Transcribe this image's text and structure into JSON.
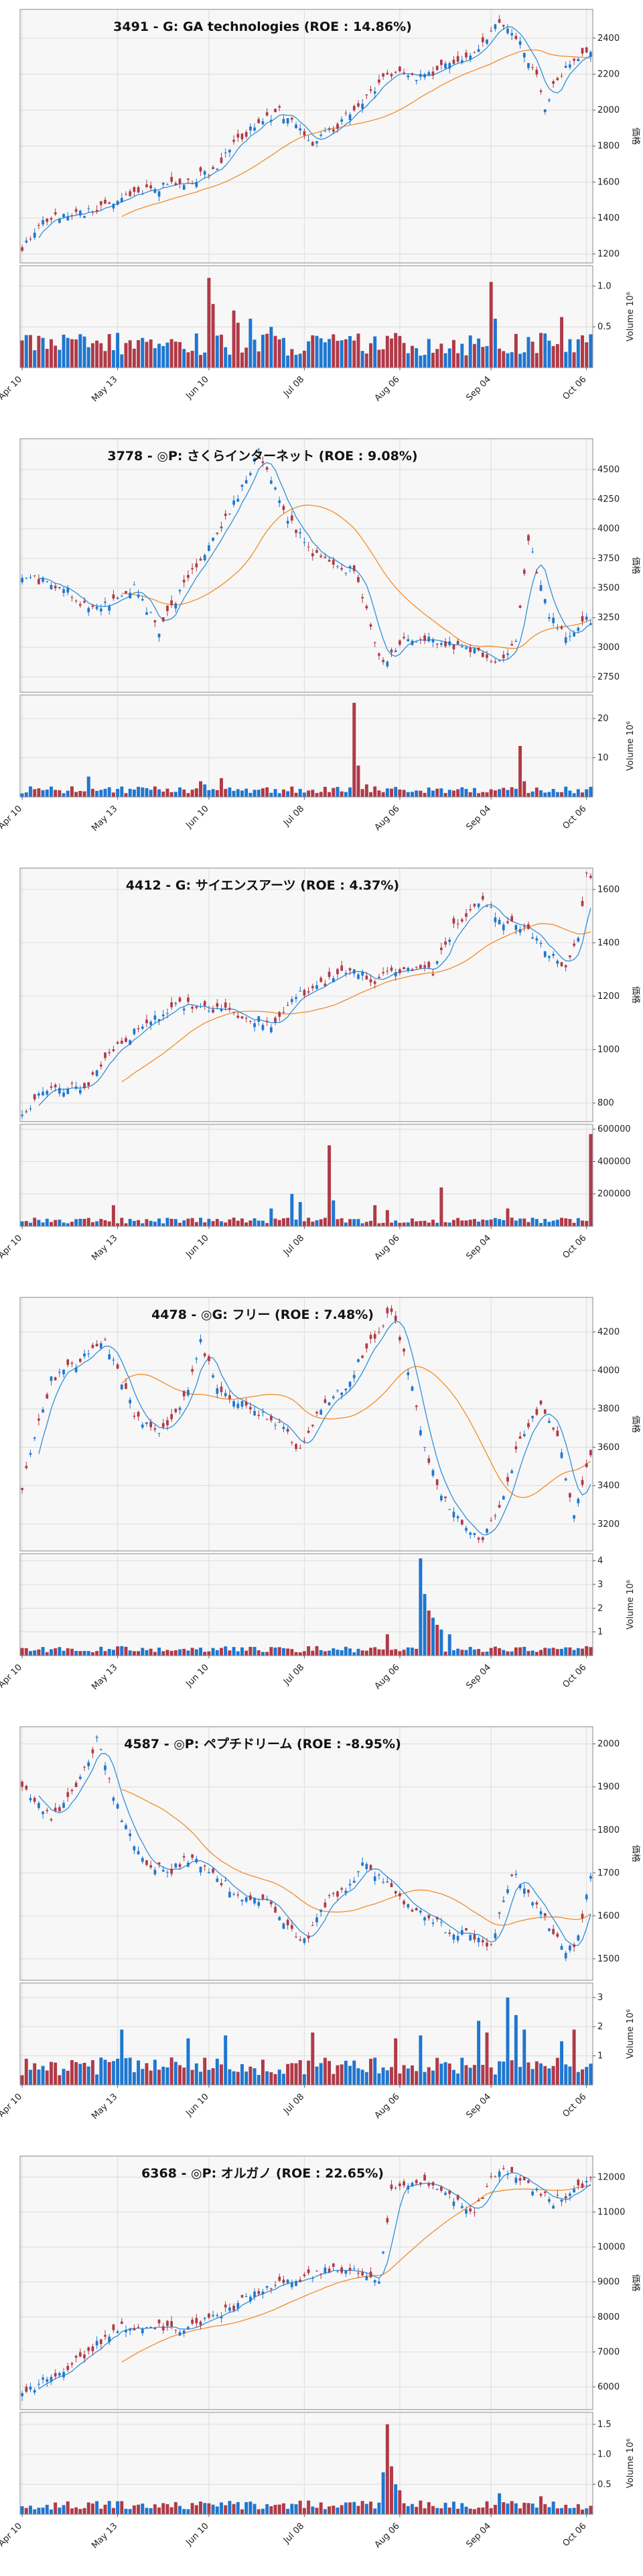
{
  "page": {
    "candle_up_color": "#1f77d0",
    "candle_down_color": "#b03a48",
    "ma_short_color": "#2f8fd8",
    "ma_long_color": "#f28c28",
    "panel_background": "#f7f7f7",
    "grid_color": "#dcdcdc"
  },
  "chart_data": [
    {
      "type": "candlestick",
      "title": "3491 - G: GA technologies (ROE : 14.86%)",
      "ylabel": "価格",
      "volume_label": "Volume  10⁶",
      "x_ticks": [
        "Apr 10",
        "May 13",
        "Jun 10",
        "Jul 08",
        "Aug 06",
        "Sep 04",
        "Oct 06"
      ],
      "price_ylim": [
        1150,
        2560
      ],
      "price_ticks": [
        "1200",
        "1400",
        "1600",
        "1800",
        "2000",
        "2200",
        "2400"
      ],
      "volume_ylim": [
        0,
        1.25
      ],
      "volume_ticks": [
        "0.5",
        "1.0"
      ],
      "volume_scale": 1000000,
      "anchors": [
        [
          0,
          1230
        ],
        [
          5,
          1400
        ],
        [
          16,
          1430
        ],
        [
          22,
          1480
        ],
        [
          30,
          1560
        ],
        [
          40,
          1600
        ],
        [
          47,
          1680
        ],
        [
          53,
          1860
        ],
        [
          62,
          1990
        ],
        [
          67,
          1890
        ],
        [
          70,
          1800
        ],
        [
          80,
          2000
        ],
        [
          88,
          2200
        ],
        [
          96,
          2180
        ],
        [
          103,
          2250
        ],
        [
          110,
          2330
        ],
        [
          114,
          2500
        ],
        [
          120,
          2380
        ],
        [
          124,
          2180
        ],
        [
          126,
          2000
        ],
        [
          128,
          2160
        ],
        [
          134,
          2300
        ]
      ],
      "volume_base": 0.32,
      "volume_spikes": [
        [
          45,
          1.1
        ],
        [
          46,
          0.78
        ],
        [
          51,
          0.7
        ],
        [
          52,
          0.55
        ],
        [
          55,
          0.6
        ],
        [
          60,
          0.5
        ],
        [
          113,
          1.05
        ],
        [
          114,
          0.6
        ],
        [
          130,
          0.62
        ]
      ]
    },
    {
      "type": "candlestick",
      "title": "3778 - ◎P: さくらインターネット (ROE : 9.08%)",
      "ylabel": "価格",
      "volume_label": "Volume  10⁶",
      "x_ticks": [
        "Apr 10",
        "May 13",
        "Jun 10",
        "Jul 08",
        "Aug 06",
        "Sep 04",
        "Oct 06"
      ],
      "price_ylim": [
        2620,
        4760
      ],
      "price_ticks": [
        "2750",
        "3000",
        "3250",
        "3500",
        "3750",
        "4000",
        "4250",
        "4500"
      ],
      "volume_ylim": [
        0,
        26
      ],
      "volume_ticks": [
        "10",
        "20"
      ],
      "volume_scale": 1000000,
      "anchors": [
        [
          0,
          3600
        ],
        [
          10,
          3500
        ],
        [
          16,
          3330
        ],
        [
          22,
          3380
        ],
        [
          27,
          3500
        ],
        [
          33,
          3150
        ],
        [
          40,
          3600
        ],
        [
          48,
          4000
        ],
        [
          57,
          4650
        ],
        [
          63,
          4150
        ],
        [
          70,
          3800
        ],
        [
          80,
          3630
        ],
        [
          87,
          2850
        ],
        [
          92,
          3100
        ],
        [
          100,
          3050
        ],
        [
          105,
          3000
        ],
        [
          116,
          2880
        ],
        [
          119,
          3050
        ],
        [
          122,
          3900
        ],
        [
          127,
          3250
        ],
        [
          131,
          3100
        ],
        [
          136,
          3230
        ]
      ],
      "volume_base": 2.0,
      "volume_spikes": [
        [
          16,
          5.2
        ],
        [
          43,
          4.0
        ],
        [
          44,
          3.2
        ],
        [
          48,
          4.8
        ],
        [
          80,
          24
        ],
        [
          81,
          8.0
        ],
        [
          83,
          3.2
        ],
        [
          120,
          13
        ],
        [
          121,
          4.0
        ]
      ]
    },
    {
      "type": "candlestick",
      "title": "4412 - G: サイエンスアーツ (ROE : 4.37%)",
      "ylabel": "価格",
      "volume_label": "",
      "x_ticks": [
        "Apr 10",
        "May 13",
        "Jun 10",
        "Jul 08",
        "Aug 06",
        "Sep 04",
        "Oct 06"
      ],
      "price_ylim": [
        730,
        1680
      ],
      "price_ticks": [
        "800",
        "1000",
        "1200",
        "1400",
        "1600"
      ],
      "volume_ylim": [
        0,
        630000
      ],
      "volume_ticks": [
        "200000",
        "400000",
        "600000"
      ],
      "volume_scale": 1,
      "anchors": [
        [
          0,
          760
        ],
        [
          6,
          850
        ],
        [
          15,
          860
        ],
        [
          22,
          1000
        ],
        [
          30,
          1100
        ],
        [
          37,
          1170
        ],
        [
          44,
          1160
        ],
        [
          52,
          1130
        ],
        [
          60,
          1100
        ],
        [
          66,
          1200
        ],
        [
          72,
          1240
        ],
        [
          78,
          1300
        ],
        [
          85,
          1260
        ],
        [
          92,
          1300
        ],
        [
          99,
          1290
        ],
        [
          104,
          1460
        ],
        [
          110,
          1560
        ],
        [
          116,
          1480
        ],
        [
          122,
          1440
        ],
        [
          128,
          1350
        ],
        [
          131,
          1300
        ],
        [
          134,
          1420
        ],
        [
          136,
          1650
        ]
      ],
      "volume_base": 40000,
      "volume_spikes": [
        [
          22,
          130000
        ],
        [
          60,
          110000
        ],
        [
          65,
          200000
        ],
        [
          67,
          150000
        ],
        [
          74,
          500000
        ],
        [
          75,
          160000
        ],
        [
          85,
          130000
        ],
        [
          88,
          100000
        ],
        [
          101,
          240000
        ],
        [
          117,
          110000
        ],
        [
          137,
          570000
        ]
      ]
    },
    {
      "type": "candlestick",
      "title": "4478 - ◎G: フリー (ROE : 7.48%)",
      "ylabel": "価格",
      "volume_label": "Volume  10⁶",
      "x_ticks": [
        "Apr 10",
        "May 13",
        "Jun 10",
        "Jul 08",
        "Aug 06",
        "Sep 04",
        "Oct 06"
      ],
      "price_ylim": [
        3060,
        4380
      ],
      "price_ticks": [
        "3200",
        "3400",
        "3600",
        "3800",
        "4000",
        "4200"
      ],
      "volume_ylim": [
        0,
        4.3
      ],
      "volume_ticks": [
        "1",
        "2",
        "3",
        "4"
      ],
      "volume_scale": 1000000,
      "anchors": [
        [
          0,
          3380
        ],
        [
          3,
          3650
        ],
        [
          7,
          3950
        ],
        [
          14,
          4050
        ],
        [
          20,
          4150
        ],
        [
          27,
          3780
        ],
        [
          33,
          3650
        ],
        [
          40,
          3900
        ],
        [
          43,
          4150
        ],
        [
          48,
          3870
        ],
        [
          56,
          3800
        ],
        [
          63,
          3700
        ],
        [
          66,
          3580
        ],
        [
          72,
          3800
        ],
        [
          78,
          3920
        ],
        [
          84,
          4150
        ],
        [
          89,
          4320
        ],
        [
          93,
          4000
        ],
        [
          97,
          3600
        ],
        [
          101,
          3350
        ],
        [
          106,
          3200
        ],
        [
          111,
          3110
        ],
        [
          116,
          3350
        ],
        [
          120,
          3650
        ],
        [
          125,
          3820
        ],
        [
          129,
          3650
        ],
        [
          133,
          3250
        ],
        [
          137,
          3560
        ]
      ],
      "volume_base": 0.3,
      "volume_spikes": [
        [
          88,
          0.9
        ],
        [
          96,
          4.1
        ],
        [
          97,
          2.6
        ],
        [
          98,
          1.9
        ],
        [
          99,
          1.6
        ],
        [
          100,
          1.3
        ],
        [
          101,
          1.1
        ],
        [
          103,
          0.9
        ]
      ]
    },
    {
      "type": "candlestick",
      "title": "4587 - ◎P: ペプチドリーム (ROE : -8.95%)",
      "ylabel": "価格",
      "volume_label": "Volume  10⁶",
      "x_ticks": [
        "Apr 10",
        "May 13",
        "Jun 10",
        "Jul 08",
        "Aug 06",
        "Sep 04",
        "Oct 06"
      ],
      "price_ylim": [
        1450,
        2040
      ],
      "price_ticks": [
        "1500",
        "1600",
        "1700",
        "1800",
        "1900",
        "2000"
      ],
      "volume_ylim": [
        0,
        3.5
      ],
      "volume_ticks": [
        "1",
        "2",
        "3"
      ],
      "volume_scale": 1000000,
      "anchors": [
        [
          0,
          1900
        ],
        [
          7,
          1830
        ],
        [
          13,
          1900
        ],
        [
          18,
          2010
        ],
        [
          23,
          1850
        ],
        [
          29,
          1730
        ],
        [
          35,
          1700
        ],
        [
          41,
          1740
        ],
        [
          47,
          1690
        ],
        [
          53,
          1640
        ],
        [
          58,
          1640
        ],
        [
          65,
          1570
        ],
        [
          68,
          1540
        ],
        [
          74,
          1640
        ],
        [
          79,
          1670
        ],
        [
          82,
          1720
        ],
        [
          88,
          1680
        ],
        [
          93,
          1620
        ],
        [
          98,
          1600
        ],
        [
          103,
          1560
        ],
        [
          108,
          1560
        ],
        [
          113,
          1530
        ],
        [
          118,
          1700
        ],
        [
          123,
          1640
        ],
        [
          127,
          1580
        ],
        [
          131,
          1510
        ],
        [
          134,
          1550
        ],
        [
          137,
          1690
        ]
      ],
      "volume_base": 0.7,
      "volume_spikes": [
        [
          24,
          1.9
        ],
        [
          40,
          1.6
        ],
        [
          49,
          1.7
        ],
        [
          70,
          1.8
        ],
        [
          90,
          1.6
        ],
        [
          96,
          1.7
        ],
        [
          110,
          2.2
        ],
        [
          112,
          1.8
        ],
        [
          117,
          3.0
        ],
        [
          119,
          2.4
        ],
        [
          121,
          1.9
        ],
        [
          130,
          1.5
        ],
        [
          133,
          1.9
        ]
      ]
    },
    {
      "type": "candlestick",
      "title": "6368 - ◎P: オルガノ (ROE : 22.65%)",
      "ylabel": "価格",
      "volume_label": "Volume  10⁶",
      "x_ticks": [
        "Apr 10",
        "May 13",
        "Jun 10",
        "Jul 08",
        "Aug 06",
        "Sep 04",
        "Oct 06"
      ],
      "price_ylim": [
        5350,
        12600
      ],
      "price_ticks": [
        "6000",
        "7000",
        "8000",
        "9000",
        "10000",
        "11000",
        "12000"
      ],
      "volume_ylim": [
        0,
        1.7
      ],
      "volume_ticks": [
        "0.5",
        "1.0",
        "1.5"
      ],
      "volume_scale": 1000000,
      "anchors": [
        [
          0,
          5800
        ],
        [
          8,
          6400
        ],
        [
          14,
          6800
        ],
        [
          23,
          7700
        ],
        [
          33,
          7700
        ],
        [
          38,
          7600
        ],
        [
          45,
          7900
        ],
        [
          51,
          8300
        ],
        [
          58,
          8800
        ],
        [
          65,
          9000
        ],
        [
          73,
          9300
        ],
        [
          80,
          9400
        ],
        [
          84,
          9200
        ],
        [
          86,
          9100
        ],
        [
          89,
          11600
        ],
        [
          96,
          11900
        ],
        [
          103,
          11500
        ],
        [
          109,
          11000
        ],
        [
          113,
          12000
        ],
        [
          118,
          12200
        ],
        [
          123,
          11600
        ],
        [
          128,
          11300
        ],
        [
          133,
          11600
        ],
        [
          137,
          11900
        ]
      ],
      "volume_base": 0.17,
      "volume_spikes": [
        [
          87,
          0.7
        ],
        [
          88,
          1.5
        ],
        [
          89,
          0.8
        ],
        [
          90,
          0.5
        ],
        [
          91,
          0.4
        ],
        [
          115,
          0.35
        ],
        [
          125,
          0.3
        ]
      ]
    }
  ]
}
